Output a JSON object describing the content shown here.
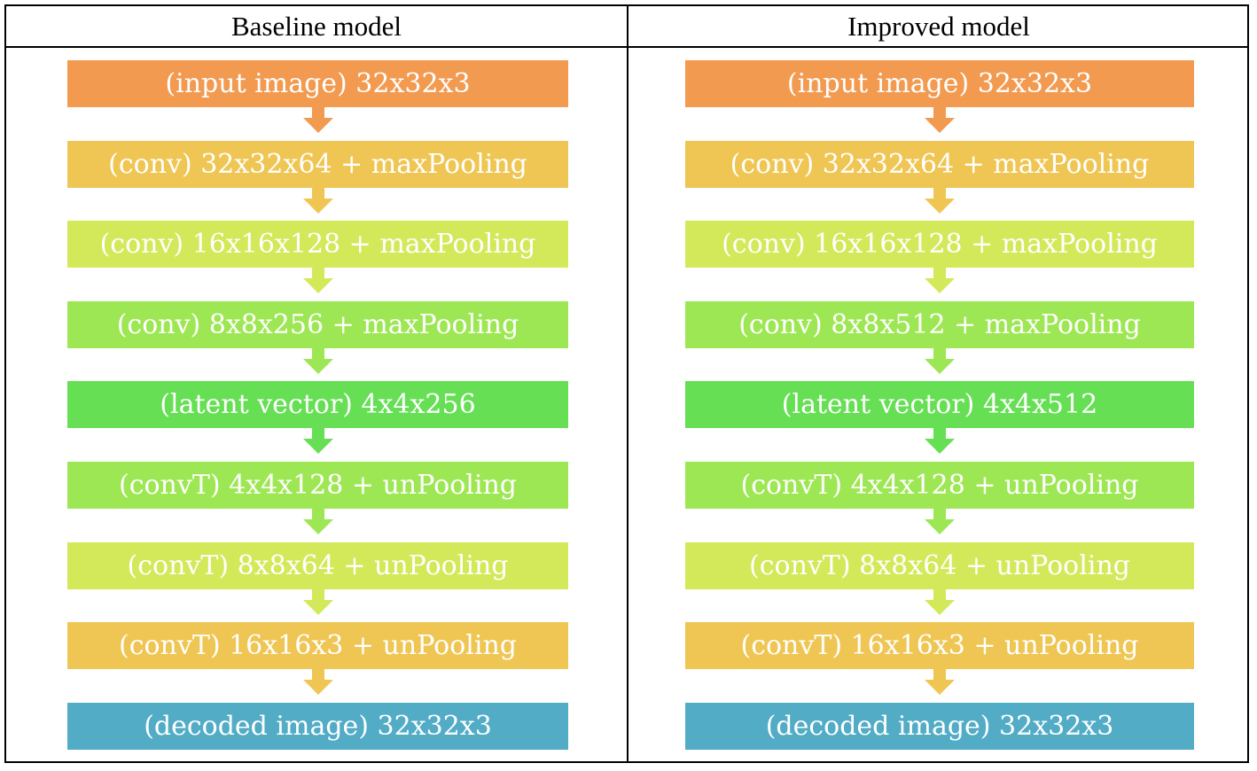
{
  "columns": [
    {
      "title": "Baseline model",
      "layers": [
        {
          "label": "(input image) 32x32x3",
          "color": "#f29a50"
        },
        {
          "label": "(conv) 32x32x64 + maxPooling",
          "color": "#efc653"
        },
        {
          "label": "(conv) 16x16x128 + maxPooling",
          "color": "#d3e95a"
        },
        {
          "label": "(conv) 8x8x256 + maxPooling",
          "color": "#9ee754"
        },
        {
          "label": "(latent vector) 4x4x256",
          "color": "#66df55"
        },
        {
          "label": "(convT) 4x4x128 + unPooling",
          "color": "#9ee754"
        },
        {
          "label": "(convT) 8x8x64 + unPooling",
          "color": "#d3e95a"
        },
        {
          "label": "(convT) 16x16x3 + unPooling",
          "color": "#efc653"
        },
        {
          "label": "(decoded image) 32x32x3",
          "color": "#52acc6"
        }
      ]
    },
    {
      "title": "Improved model",
      "layers": [
        {
          "label": "(input image) 32x32x3",
          "color": "#f29a50"
        },
        {
          "label": "(conv) 32x32x64 + maxPooling",
          "color": "#efc653"
        },
        {
          "label": "(conv) 16x16x128 + maxPooling",
          "color": "#d3e95a"
        },
        {
          "label": "(conv) 8x8x512 + maxPooling",
          "color": "#9ee754"
        },
        {
          "label": "(latent vector) 4x4x512",
          "color": "#66df55"
        },
        {
          "label": "(convT) 4x4x128 + unPooling",
          "color": "#9ee754"
        },
        {
          "label": "(convT) 8x8x64 + unPooling",
          "color": "#d3e95a"
        },
        {
          "label": "(convT) 16x16x3 + unPooling",
          "color": "#efc653"
        },
        {
          "label": "(decoded image) 32x32x3",
          "color": "#52acc6"
        }
      ]
    }
  ]
}
